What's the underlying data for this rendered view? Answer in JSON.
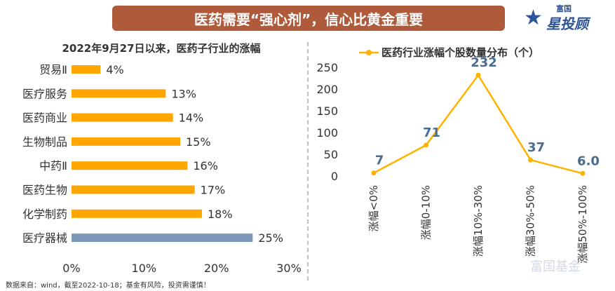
{
  "banner": {
    "title": "医药需要“强心剂”，信心比黄金重要"
  },
  "logo": {
    "top_text": "富国",
    "main_text": "星投顾",
    "star": "★"
  },
  "footnote": "数据来自：wind，截至2022-10-18；基金有风险，投资需谨慎！",
  "watermark": "富国基金",
  "colors": {
    "bar": "#ffa600",
    "bar_highlight": "#7d97b8",
    "line": "#ffb300",
    "label_blue": "#4a6c91",
    "banner": "#b05a3c"
  },
  "chart_data": [
    {
      "type": "bar",
      "orientation": "horizontal",
      "title": "2022年9月27日以来，医药子行业的涨幅",
      "categories": [
        "贸易Ⅱ",
        "医疗服务",
        "医药商业",
        "生物制品",
        "中药Ⅱ",
        "医药生物",
        "化学制药",
        "医疗器械"
      ],
      "values": [
        4,
        13,
        14,
        15,
        16,
        17,
        18,
        25
      ],
      "value_labels": [
        "4%",
        "13%",
        "14%",
        "15%",
        "16%",
        "17%",
        "18%",
        "25%"
      ],
      "highlight_index": 7,
      "xlim": [
        0,
        30
      ],
      "xticks": [
        "0%",
        "10%",
        "20%",
        "30%"
      ],
      "xlabel": "",
      "ylabel": ""
    },
    {
      "type": "line",
      "title": "医药行业涨幅个股数量分布（个）",
      "legend": "医药行业涨幅个股数量分布（个）",
      "categories": [
        "涨幅<0%",
        "涨幅0-10%",
        "涨幅10%-30%",
        "涨幅30%-50%",
        "涨幅50%-100%"
      ],
      "values": [
        7,
        71,
        232,
        37,
        6
      ],
      "value_labels": [
        "7",
        "71",
        "232",
        "37",
        "6.0"
      ],
      "ylim": [
        0,
        250
      ],
      "yticks": [
        "0",
        "50",
        "100",
        "150",
        "200",
        "250"
      ],
      "xlabel": "",
      "ylabel": ""
    }
  ]
}
